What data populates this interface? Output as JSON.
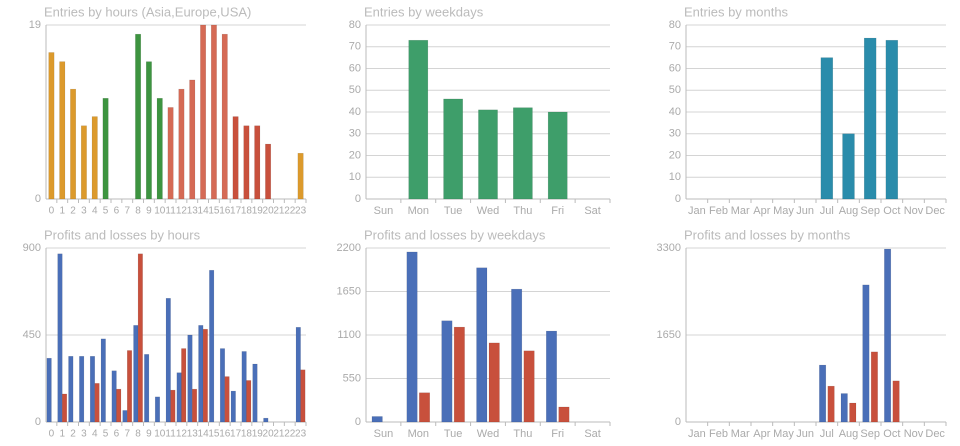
{
  "chart_data": [
    {
      "type": "bar",
      "title": "Entries by hours (Asia,Europe,USA)",
      "categories": [
        "0",
        "1",
        "2",
        "3",
        "4",
        "5",
        "6",
        "7",
        "8",
        "9",
        "10",
        "11",
        "12",
        "13",
        "14",
        "15",
        "16",
        "17",
        "18",
        "19",
        "20",
        "21",
        "22",
        "23"
      ],
      "values": [
        16,
        15,
        12,
        8,
        9,
        11,
        0,
        0,
        18,
        15,
        11,
        10,
        12,
        13,
        19,
        19,
        18,
        9,
        8,
        8,
        6,
        0,
        0,
        5
      ],
      "colors": [
        "#dc9a2c",
        "#dc9a2c",
        "#dc9a2c",
        "#dc9a2c",
        "#dc9a2c",
        "#3d9440",
        "#3d9440",
        "#3d9440",
        "#3d9440",
        "#3d9440",
        "#3d9440",
        "#d56a55",
        "#d56a55",
        "#d56a55",
        "#d56a55",
        "#d56a55",
        "#d56a55",
        "#c8503c",
        "#c8503c",
        "#c8503c",
        "#c8503c",
        "#c8503c",
        "#dc9a2c",
        "#dc9a2c"
      ],
      "ylim": [
        0,
        19
      ],
      "yticks": [
        0,
        19
      ],
      "grid": true
    },
    {
      "type": "bar",
      "title": "Entries by weekdays",
      "categories": [
        "Sun",
        "Mon",
        "Tue",
        "Wed",
        "Thu",
        "Fri",
        "Sat"
      ],
      "values": [
        0,
        73,
        46,
        41,
        42,
        40,
        0
      ],
      "color": "#3e9e6a",
      "ylim": [
        0,
        80
      ],
      "yticks": [
        0,
        10,
        20,
        30,
        40,
        50,
        60,
        70,
        80
      ],
      "grid": true
    },
    {
      "type": "bar",
      "title": "Entries by months",
      "categories": [
        "Jan",
        "Feb",
        "Mar",
        "Apr",
        "May",
        "Jun",
        "Jul",
        "Aug",
        "Sep",
        "Oct",
        "Nov",
        "Dec"
      ],
      "values": [
        0,
        0,
        0,
        0,
        0,
        0,
        65,
        30,
        74,
        73,
        0,
        0
      ],
      "color": "#2a8cab",
      "ylim": [
        0,
        80
      ],
      "yticks": [
        0,
        10,
        20,
        30,
        40,
        50,
        60,
        70,
        80
      ],
      "grid": true
    },
    {
      "type": "grouped-bar",
      "title": "Profits and losses by hours",
      "categories": [
        "0",
        "1",
        "2",
        "3",
        "4",
        "5",
        "6",
        "7",
        "8",
        "9",
        "10",
        "11",
        "12",
        "13",
        "14",
        "15",
        "16",
        "17",
        "18",
        "19",
        "20",
        "21",
        "22",
        "23"
      ],
      "series": [
        {
          "color": "#4a6fb8",
          "values": [
            330,
            870,
            340,
            340,
            340,
            430,
            265,
            60,
            500,
            350,
            130,
            640,
            255,
            450,
            500,
            785,
            380,
            160,
            365,
            300,
            20,
            0,
            0,
            490
          ]
        },
        {
          "color": "#c8503c",
          "values": [
            0,
            145,
            0,
            0,
            200,
            0,
            170,
            370,
            870,
            0,
            0,
            165,
            380,
            170,
            480,
            0,
            235,
            0,
            215,
            0,
            0,
            0,
            0,
            270
          ]
        }
      ],
      "ylim": [
        0,
        900
      ],
      "yticks": [
        0,
        450,
        900
      ],
      "grid": true
    },
    {
      "type": "grouped-bar",
      "title": "Profits and losses by weekdays",
      "categories": [
        "Sun",
        "Mon",
        "Tue",
        "Wed",
        "Thu",
        "Fri",
        "Sat"
      ],
      "series": [
        {
          "color": "#4a6fb8",
          "values": [
            70,
            2150,
            1280,
            1950,
            1680,
            1150,
            0
          ]
        },
        {
          "color": "#c8503c",
          "values": [
            0,
            370,
            1200,
            1000,
            900,
            190,
            0
          ]
        }
      ],
      "ylim": [
        0,
        2200
      ],
      "yticks": [
        0,
        550,
        1100,
        1650,
        2200
      ],
      "grid": true
    },
    {
      "type": "grouped-bar",
      "title": "Profits and losses by months",
      "categories": [
        "Jan",
        "Feb",
        "Mar",
        "Apr",
        "May",
        "Jun",
        "Jul",
        "Aug",
        "Sep",
        "Oct",
        "Nov",
        "Dec"
      ],
      "series": [
        {
          "color": "#4a6fb8",
          "values": [
            0,
            0,
            0,
            0,
            0,
            0,
            1080,
            540,
            2600,
            3280,
            0,
            0
          ]
        },
        {
          "color": "#c8503c",
          "values": [
            0,
            0,
            0,
            0,
            0,
            0,
            680,
            360,
            1330,
            780,
            0,
            0
          ]
        }
      ],
      "ylim": [
        0,
        3300
      ],
      "yticks": [
        0,
        1650,
        3300
      ],
      "grid": true
    }
  ]
}
